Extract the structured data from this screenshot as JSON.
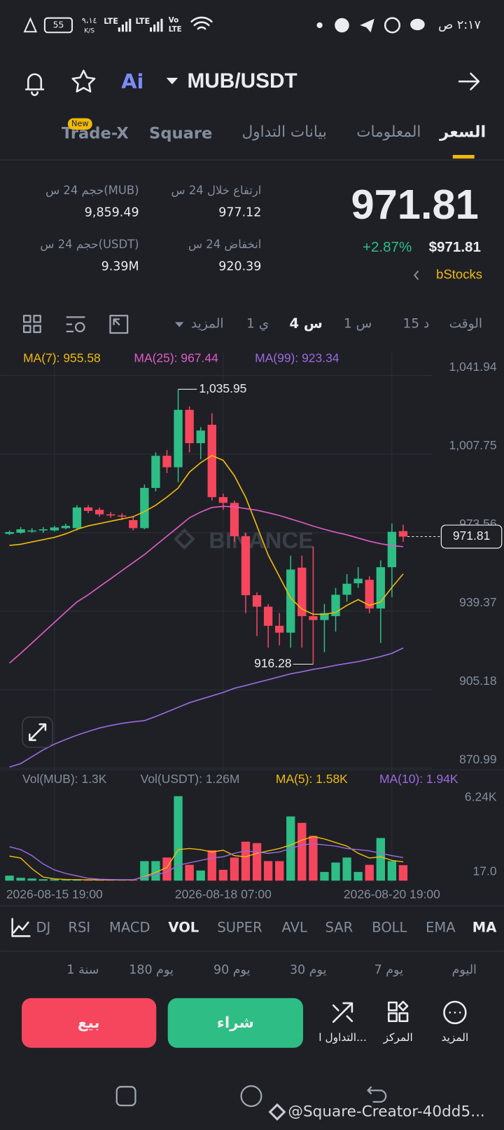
{
  "status_bar": {
    "time": "٢:١٧ ص",
    "battery": "55",
    "speed": "٩،١٤",
    "speed_unit": "K/S",
    "sim1": "LTE",
    "sim2": "LTE",
    "volte_top": "Vo",
    "volte_bottom": "LTE"
  },
  "header": {
    "ai": "Ai",
    "pair": "MUB/USDT"
  },
  "tabs": [
    "السعر",
    "المعلومات",
    "بيانات التداول",
    "Square",
    "Trade-X"
  ],
  "new_badge": "New",
  "price": {
    "last": "971.81",
    "change": "+2.87%",
    "usd": "$971.81",
    "stocks": "bStocks"
  },
  "stats": [
    {
      "label": "ارتفاع خلال 24 س",
      "value": "977.12"
    },
    {
      "label": "حجم 24 س(MUB)",
      "value": "9,859.49"
    },
    {
      "label": "انخفاض 24 س",
      "value": "920.39"
    },
    {
      "label": "حجم 24 س(USDT)",
      "value": "9.39M"
    }
  ],
  "intervals": [
    "الوقت",
    "15 د",
    "1 س",
    "4 س",
    "1 ي",
    "المزيد"
  ],
  "watermark": "BINANCE",
  "indicators": [
    "DJ",
    "RSI",
    "MACD",
    "VOL",
    "SUPER",
    "AVL",
    "SAR",
    "BOLL",
    "EMA",
    "MA"
  ],
  "periods": [
    "اليوم",
    "7 يوم",
    "30 يوم",
    "90 يوم",
    "180 يوم",
    "1 سنة"
  ],
  "actions": {
    "more": "المزيد",
    "center": "المركز",
    "trading": "التداول ا...",
    "buy": "شراء",
    "sell": "بيع"
  },
  "footer": "@Square-Creator-40dd5...",
  "chart_data": {
    "type": "candlestick",
    "x": [
      null,
      null,
      null,
      null,
      "2026-08-15 19:00",
      null,
      null,
      null,
      null,
      null,
      null,
      null,
      null,
      null,
      null,
      null,
      null,
      null,
      null,
      "2026-08-18 07:00",
      null,
      null,
      null,
      null,
      null,
      null,
      null,
      null,
      null,
      null,
      null,
      null,
      null,
      null,
      "2026-08-20 19:00",
      null
    ],
    "open": [
      973,
      973.5,
      974,
      974.5,
      974.5,
      975.5,
      975.5,
      984.5,
      983.5,
      981.5,
      981,
      979,
      975.5,
      993,
      1007,
      1002,
      1027,
      1012.5,
      1020.5,
      989,
      986.5,
      972,
      946.3,
      941.3,
      933,
      930,
      958.3,
      937.2,
      935.5,
      937.2,
      946.5,
      951.5,
      953,
      940.5,
      958.5,
      974.2
    ],
    "high": [
      974.5,
      976,
      975.5,
      976,
      976.5,
      977.5,
      985.5,
      985.5,
      984.5,
      982.5,
      982,
      980.5,
      994.5,
      1008.5,
      1009.5,
      1035.95,
      1028.5,
      1019.5,
      1025.5,
      990.5,
      987.5,
      973.5,
      947.5,
      942.5,
      938.5,
      963.5,
      963.5,
      967.5,
      942.5,
      949.5,
      955.5,
      958.5,
      954.5,
      961.5,
      977.5,
      977
    ],
    "low": [
      972.5,
      973,
      973.5,
      973.5,
      974,
      975,
      974.5,
      982,
      980.5,
      980,
      979,
      974.5,
      975,
      991.5,
      999.5,
      995.5,
      1008.5,
      1005.5,
      987.5,
      983.5,
      969.5,
      938.5,
      928.5,
      923.5,
      924.5,
      923.5,
      923.5,
      916.28,
      921.5,
      930.5,
      943.5,
      949.5,
      938.5,
      925.5,
      945.5,
      969.5
    ],
    "close": [
      973.8,
      975,
      974.5,
      975,
      975.8,
      976.5,
      984.5,
      983,
      981.5,
      981,
      980.5,
      975.5,
      993,
      1007,
      1002,
      1027,
      1012.5,
      1018,
      989,
      986.5,
      972,
      946.3,
      941.3,
      933,
      930,
      957.5,
      937.2,
      935.5,
      938.5,
      946.5,
      951.3,
      953.5,
      940.5,
      958.5,
      973.9,
      971.81
    ],
    "color_up": "#2ebd85",
    "color_down": "#f6465d",
    "ylim": [
      870.99,
      1052
    ],
    "yticks": [
      {
        "value": 870.99,
        "label": "870.99"
      },
      {
        "value": 905.18,
        "label": "905.18"
      },
      {
        "value": 939.37,
        "label": "939.37"
      },
      {
        "value": 973.56,
        "label": "973.56"
      },
      {
        "value": 1007.75,
        "label": "1,007.75"
      },
      {
        "value": 1041.94,
        "label": "1,041.94"
      }
    ],
    "grid": true,
    "high_label": "1,035.95",
    "series": [
      {
        "name": "MA(7): 955.58",
        "color": "#f0b90b",
        "values": [
          968,
          968.5,
          969.5,
          970.5,
          971.5,
          973,
          975,
          976.5,
          977.5,
          978.5,
          979.5,
          980.5,
          982.7,
          985.5,
          989,
          993,
          999.9,
          1004,
          1007.1,
          1005,
          998.3,
          988.9,
          976.4,
          963.8,
          954.4,
          945,
          940.3,
          938,
          938,
          938.8,
          941.9,
          944.4,
          941.9,
          943.4,
          949.7,
          955.58
        ]
      },
      {
        "name": "MA(25): 967.44",
        "color": "#e05cc4",
        "values": [
          916.8,
          921,
          925.5,
          930,
          934.5,
          939,
          943.4,
          946.5,
          950,
          953.5,
          957,
          960.5,
          964,
          968,
          972,
          976,
          980,
          982.5,
          984.5,
          985,
          984.8,
          984,
          983.3,
          982.2,
          981,
          979.5,
          978,
          976.4,
          975,
          973.7,
          972.6,
          971.2,
          969.8,
          968.7,
          967.9,
          967.44
        ]
      },
      {
        "name": "MA(99): 923.34",
        "color": "#9c6ade",
        "values": [
          871.5,
          873,
          876,
          879,
          881.5,
          883.5,
          885.4,
          887,
          888.5,
          889.6,
          890.5,
          891.2,
          891.7,
          893.5,
          895.5,
          897.5,
          899.5,
          901,
          902.5,
          904,
          905.8,
          907,
          908.3,
          909.5,
          910.8,
          912.1,
          913,
          914,
          914.8,
          915.8,
          916.6,
          917.4,
          918.5,
          919.6,
          921,
          923.34
        ]
      }
    ],
    "volume": {
      "legends": [
        "Vol(MUB): 1.3K",
        "Vol(USDT): 1.26M"
      ],
      "values": [
        420,
        240,
        180,
        120,
        120,
        60,
        120,
        60,
        60,
        60,
        60,
        60,
        1640,
        1640,
        1940,
        7090,
        1330,
        850,
        2550,
        910,
        1940,
        3270,
        3150,
        1640,
        1640,
        5390,
        4850,
        3760,
        730,
        1520,
        1940,
        730,
        1330,
        3580,
        1640,
        1300
      ],
      "ylim": [
        0,
        7500
      ],
      "yticks": [
        {
          "value": 17,
          "label": "17.0"
        },
        {
          "value": 6240,
          "label": "6.24K"
        }
      ],
      "series": [
        {
          "name": "MA(5): 1.58K",
          "color": "#f0b90b",
          "values": [
            2060,
            1900,
            1000,
            300,
            150,
            100,
            80,
            70,
            60,
            60,
            60,
            60,
            350,
            700,
            1100,
            2600,
            2700,
            2600,
            2400,
            2550,
            2100,
            2000,
            2300,
            2500,
            2700,
            3000,
            3400,
            3700,
            3500,
            3200,
            2900,
            2300,
            1900,
            2000,
            1700,
            1580
          ]
        },
        {
          "name": "MA(10): 1.94K",
          "color": "#9c6ade",
          "values": [
            2850,
            2600,
            2100,
            1400,
            900,
            600,
            400,
            200,
            120,
            90,
            80,
            80,
            300,
            500,
            700,
            1300,
            1500,
            1700,
            1900,
            2000,
            2300,
            2500,
            2400,
            2300,
            2400,
            2700,
            3000,
            3100,
            3000,
            2900,
            2700,
            2600,
            2500,
            2300,
            2100,
            1940
          ]
        }
      ]
    }
  }
}
